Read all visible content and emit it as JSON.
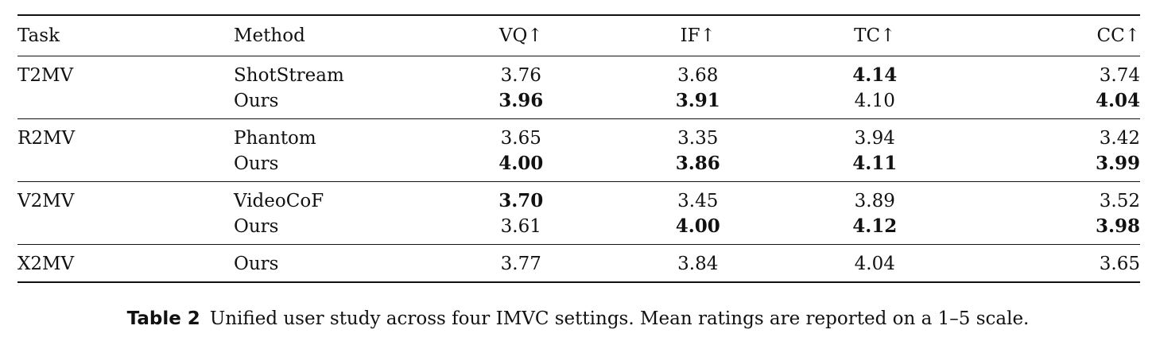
{
  "table": {
    "headers": [
      "Task",
      "Method",
      "VQ↑",
      "IF↑",
      "TC↑",
      "CC↑"
    ],
    "groups": [
      {
        "task": "T2MV",
        "rows": [
          {
            "method": "ShotStream",
            "values": [
              "3.76",
              "3.68",
              "4.14",
              "3.74"
            ],
            "bold": [
              false,
              false,
              true,
              false
            ]
          },
          {
            "method": "Ours",
            "values": [
              "3.96",
              "3.91",
              "4.10",
              "4.04"
            ],
            "bold": [
              true,
              true,
              false,
              true
            ]
          }
        ]
      },
      {
        "task": "R2MV",
        "rows": [
          {
            "method": "Phantom",
            "values": [
              "3.65",
              "3.35",
              "3.94",
              "3.42"
            ],
            "bold": [
              false,
              false,
              false,
              false
            ]
          },
          {
            "method": "Ours",
            "values": [
              "4.00",
              "3.86",
              "4.11",
              "3.99"
            ],
            "bold": [
              true,
              true,
              true,
              true
            ]
          }
        ]
      },
      {
        "task": "V2MV",
        "rows": [
          {
            "method": "VideoCoF",
            "values": [
              "3.70",
              "3.45",
              "3.89",
              "3.52"
            ],
            "bold": [
              true,
              false,
              false,
              false
            ]
          },
          {
            "method": "Ours",
            "values": [
              "3.61",
              "4.00",
              "4.12",
              "3.98"
            ],
            "bold": [
              false,
              true,
              true,
              true
            ]
          }
        ]
      },
      {
        "task": "X2MV",
        "rows": [
          {
            "method": "Ours",
            "values": [
              "3.77",
              "3.84",
              "4.04",
              "3.65"
            ],
            "bold": [
              false,
              false,
              false,
              false
            ]
          }
        ]
      }
    ]
  },
  "caption": {
    "label": "Table 2",
    "text": "Unified user study across four IMVC settings. Mean ratings are reported on a 1–5 scale."
  }
}
